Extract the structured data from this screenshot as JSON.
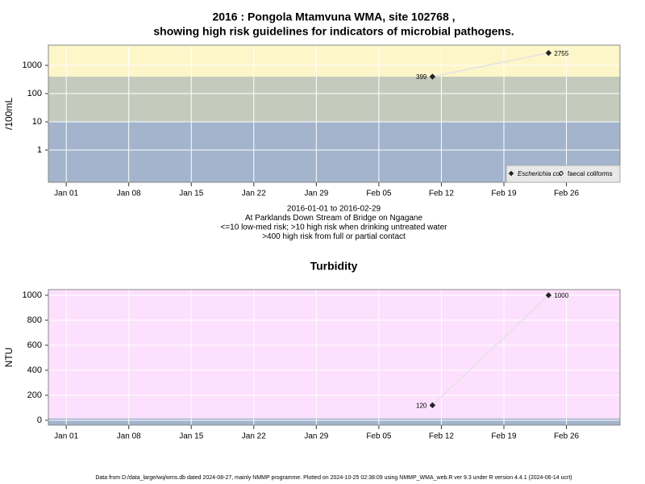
{
  "chart_data": [
    {
      "type": "line",
      "title": "2016 : Pongola Mtamvuna WMA, site 102768 ,",
      "subtitle": "showing high risk guidelines for indicators of microbial pathogens.",
      "y_label": "/100mL",
      "log_y": true,
      "xlim": [
        "2015-12-30",
        "2016-03-03"
      ],
      "xticks": [
        {
          "value": "2016-01-01",
          "label": "Jan 01"
        },
        {
          "value": "2016-01-08",
          "label": "Jan 08"
        },
        {
          "value": "2016-01-15",
          "label": "Jan 15"
        },
        {
          "value": "2016-01-22",
          "label": "Jan 22"
        },
        {
          "value": "2016-01-29",
          "label": "Jan 29"
        },
        {
          "value": "2016-02-05",
          "label": "Feb 05"
        },
        {
          "value": "2016-02-12",
          "label": "Feb 12"
        },
        {
          "value": "2016-02-19",
          "label": "Feb 19"
        },
        {
          "value": "2016-02-26",
          "label": "Feb 26"
        }
      ],
      "ylim": [
        0.072,
        5200
      ],
      "yticks": [
        1,
        10,
        100,
        1000
      ],
      "grid": true,
      "bands": [
        {
          "to": 10,
          "color": "#a3b4cc"
        },
        {
          "from": 10,
          "to": 400,
          "color": "#c4cbbd"
        },
        {
          "from": 400,
          "color": "#fdf6c8"
        }
      ],
      "x": [
        "2016-02-11",
        "2016-02-24"
      ],
      "series": [
        {
          "name": "Escherichia coli",
          "color": "#222222",
          "line_color": "#e2e2e2",
          "marker": "diamond",
          "values": [
            399,
            2755
          ]
        },
        {
          "name": "faecal coliforms",
          "color": "#222222",
          "marker": "open-diamond",
          "values": [
            null,
            null
          ]
        }
      ],
      "legend": "lower right",
      "notes": [
        "2016-01-01 to 2016-02-29",
        "At Parklands Down Stream of Bridge on Ngagane",
        "<=10 low-med risk; >10 high risk when drinking untreated water",
        ">400 high risk from full or partial contact"
      ]
    },
    {
      "type": "line",
      "title": "Turbidity",
      "y_label": "NTU",
      "log_y": false,
      "xlim": [
        "2015-12-30",
        "2016-03-03"
      ],
      "xticks": [
        {
          "value": "2016-01-01",
          "label": "Jan 01"
        },
        {
          "value": "2016-01-08",
          "label": "Jan 08"
        },
        {
          "value": "2016-01-15",
          "label": "Jan 15"
        },
        {
          "value": "2016-01-22",
          "label": "Jan 22"
        },
        {
          "value": "2016-01-29",
          "label": "Jan 29"
        },
        {
          "value": "2016-02-05",
          "label": "Feb 05"
        },
        {
          "value": "2016-02-12",
          "label": "Feb 12"
        },
        {
          "value": "2016-02-19",
          "label": "Feb 19"
        },
        {
          "value": "2016-02-26",
          "label": "Feb 26"
        }
      ],
      "ylim": [
        -39,
        1045
      ],
      "yticks": [
        0,
        200,
        400,
        600,
        800,
        1000
      ],
      "grid": true,
      "bands": [
        {
          "to": 15,
          "color": "#a3b4cc"
        },
        {
          "from": 15,
          "color": "#fde0fd"
        }
      ],
      "x": [
        "2016-02-11",
        "2016-02-24"
      ],
      "series": [
        {
          "name": "Turbidity",
          "color": "#222222",
          "line_color": "#e2e2e2",
          "marker": "diamond",
          "values": [
            120,
            1000
          ]
        }
      ]
    }
  ],
  "footer": "Data from D:/data_large/wq/wms.db dated 2024-08-27, mainly NMMP programme. Plotted on 2024-10-25 02:38:09 using NMMP_WMA_web.R ver 9.3 under R version 4.4.1 (2024-06-14 ucrt)"
}
